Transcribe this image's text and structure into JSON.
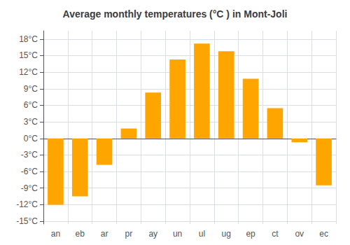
{
  "chart_data": {
    "type": "bar",
    "title": "Average monthly temperatures (°C ) in Mont-Joli",
    "categories": [
      "an",
      "eb",
      "ar",
      "pr",
      "ay",
      "un",
      "ul",
      "ug",
      "ep",
      "ct",
      "ov",
      "ec"
    ],
    "values": [
      -12.0,
      -10.5,
      -4.8,
      1.8,
      8.3,
      14.3,
      17.2,
      15.8,
      10.8,
      5.5,
      -0.7,
      -8.5
    ],
    "color": "#FFA500",
    "ylim": [
      -15.5,
      19.5
    ],
    "yticks": [
      {
        "value": -15,
        "label": "-15°C"
      },
      {
        "value": -12,
        "label": "-12°C"
      },
      {
        "value": -9,
        "label": "-9°C"
      },
      {
        "value": -6,
        "label": "-6°C"
      },
      {
        "value": -3,
        "label": "-3°C"
      },
      {
        "value": 0,
        "label": "0°C"
      },
      {
        "value": 3,
        "label": "3°C"
      },
      {
        "value": 6,
        "label": "6°C"
      },
      {
        "value": 9,
        "label": "9°C"
      },
      {
        "value": 12,
        "label": "12°C"
      },
      {
        "value": 15,
        "label": "15°C"
      },
      {
        "value": 18,
        "label": "18°C"
      }
    ],
    "grid": true
  }
}
